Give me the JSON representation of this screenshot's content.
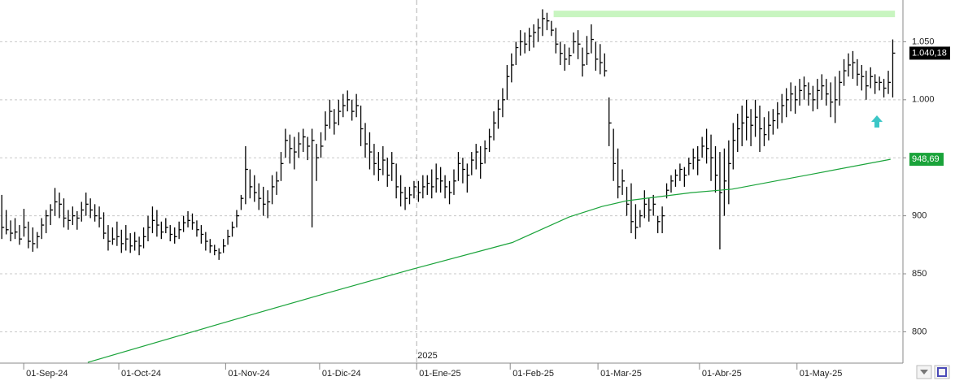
{
  "chart_data": {
    "type": "ohlc",
    "xlim": [
      -0.4,
      203.3
    ],
    "ylim": [
      773,
      1086
    ],
    "yticks": [
      {
        "value": 800,
        "label": "800"
      },
      {
        "value": 850,
        "label": "850"
      },
      {
        "value": 900,
        "label": "900"
      },
      {
        "value": 950,
        "label": "950"
      },
      {
        "value": 1000,
        "label": "1.000"
      },
      {
        "value": 1050,
        "label": "1.050"
      }
    ],
    "xticks": [
      {
        "value": 4.95,
        "label": "01-Sep-24"
      },
      {
        "value": 26.4,
        "label": "01-Oct-24"
      },
      {
        "value": 50.5,
        "label": "01-Nov-24"
      },
      {
        "value": 71.7,
        "label": "01-Dic-24"
      },
      {
        "value": 93.6,
        "label": "01-Ene-25"
      },
      {
        "value": 114.7,
        "label": "01-Feb-25"
      },
      {
        "value": 134.5,
        "label": "01-Mar-25"
      },
      {
        "value": 157.4,
        "label": "01-Abr-25"
      },
      {
        "value": 179.4,
        "label": "01-May-25"
      }
    ],
    "year_marker": {
      "value": 93.6,
      "label": "2025"
    },
    "grid": true,
    "color": "#000000",
    "high": [
      918,
      905,
      896,
      898,
      892,
      906,
      895,
      890,
      886,
      898,
      905,
      910,
      924,
      920,
      915,
      905,
      908,
      904,
      912,
      920,
      915,
      910,
      908,
      903,
      892,
      890,
      895,
      888,
      892,
      885,
      886,
      882,
      890,
      900,
      908,
      905,
      895,
      898,
      892,
      890,
      895,
      900,
      904,
      902,
      896,
      892,
      886,
      880,
      875,
      872,
      880,
      888,
      895,
      905,
      918,
      960,
      940,
      935,
      928,
      925,
      922,
      935,
      938,
      955,
      975,
      970,
      968,
      972,
      975,
      968,
      975,
      962,
      972,
      990,
      1000,
      992,
      1000,
      1005,
      1008,
      1000,
      1005,
      995,
      980,
      972,
      962,
      955,
      960,
      950,
      955,
      945,
      935,
      925,
      925,
      930,
      930,
      935,
      935,
      940,
      945,
      942,
      935,
      930,
      940,
      955,
      950,
      945,
      955,
      962,
      960,
      965,
      975,
      990,
      1000,
      1010,
      1030,
      1040,
      1050,
      1060,
      1058,
      1062,
      1065,
      1070,
      1078,
      1075,
      1068,
      1062,
      1050,
      1048,
      1045,
      1058,
      1060,
      1045,
      1055,
      1065,
      1050,
      1048,
      1040,
      1002,
      975,
      958,
      940,
      925,
      928,
      910,
      905,
      922,
      915,
      918,
      900,
      908,
      928,
      935,
      940,
      945,
      942,
      950,
      958,
      960,
      968,
      975,
      970,
      960,
      955,
      958,
      965,
      980,
      988,
      995,
      1000,
      992,
      1000,
      995,
      985,
      990,
      992,
      998,
      1005,
      1010,
      1015,
      1012,
      1018,
      1020,
      1015,
      1012,
      1018,
      1022,
      1018,
      1015,
      1020,
      1025,
      1035,
      1040,
      1042,
      1035,
      1030,
      1025,
      1028,
      1022,
      1020,
      1018,
      1025,
      1052
    ],
    "low": [
      880,
      884,
      878,
      880,
      875,
      882,
      872,
      869,
      872,
      880,
      885,
      892,
      900,
      898,
      890,
      888,
      892,
      888,
      895,
      900,
      898,
      895,
      890,
      880,
      870,
      875,
      874,
      868,
      870,
      868,
      870,
      866,
      872,
      878,
      885,
      882,
      880,
      885,
      878,
      876,
      880,
      886,
      890,
      888,
      882,
      876,
      870,
      868,
      866,
      862,
      868,
      875,
      882,
      890,
      905,
      910,
      915,
      912,
      905,
      900,
      898,
      910,
      918,
      930,
      950,
      945,
      940,
      950,
      955,
      948,
      890,
      930,
      950,
      965,
      975,
      970,
      978,
      985,
      990,
      982,
      985,
      960,
      950,
      940,
      935,
      930,
      935,
      925,
      930,
      915,
      908,
      905,
      910,
      915,
      912,
      915,
      918,
      915,
      920,
      920,
      915,
      910,
      918,
      930,
      928,
      920,
      935,
      940,
      932,
      945,
      955,
      965,
      975,
      985,
      1000,
      1015,
      1030,
      1038,
      1040,
      1042,
      1045,
      1050,
      1055,
      1060,
      1055,
      1040,
      1030,
      1025,
      1030,
      1040,
      1035,
      1020,
      1030,
      1040,
      1025,
      1022,
      1020,
      960,
      930,
      915,
      918,
      900,
      885,
      880,
      890,
      898,
      895,
      900,
      885,
      885,
      915,
      920,
      925,
      930,
      925,
      935,
      940,
      935,
      950,
      945,
      930,
      920,
      871,
      900,
      910,
      940,
      955,
      960,
      965,
      960,
      968,
      955,
      960,
      965,
      970,
      975,
      980,
      985,
      990,
      988,
      995,
      1000,
      995,
      990,
      992,
      1000,
      995,
      985,
      980,
      995,
      1012,
      1020,
      1018,
      1012,
      1008,
      1000,
      1010,
      1005,
      1008,
      1002,
      1005,
      1002
    ],
    "close": [
      890,
      888,
      885,
      886,
      880,
      890,
      878,
      876,
      882,
      892,
      900,
      905,
      912,
      910,
      898,
      896,
      900,
      898,
      905,
      910,
      905,
      900,
      898,
      885,
      878,
      880,
      882,
      876,
      880,
      874,
      878,
      874,
      882,
      890,
      896,
      892,
      886,
      890,
      884,
      882,
      888,
      894,
      896,
      894,
      888,
      884,
      878,
      874,
      870,
      868,
      874,
      882,
      890,
      900,
      915,
      940,
      925,
      920,
      915,
      910,
      912,
      925,
      930,
      945,
      965,
      958,
      955,
      962,
      968,
      960,
      965,
      950,
      960,
      978,
      990,
      980,
      990,
      995,
      1000,
      990,
      995,
      975,
      962,
      955,
      945,
      940,
      948,
      935,
      945,
      925,
      920,
      915,
      918,
      925,
      920,
      925,
      928,
      925,
      932,
      930,
      925,
      920,
      930,
      945,
      940,
      935,
      948,
      955,
      945,
      958,
      968,
      980,
      992,
      1000,
      1020,
      1030,
      1045,
      1050,
      1048,
      1055,
      1058,
      1062,
      1070,
      1068,
      1060,
      1048,
      1040,
      1035,
      1038,
      1050,
      1048,
      1030,
      1040,
      1052,
      1035,
      1032,
      1025,
      980,
      945,
      925,
      930,
      910,
      895,
      890,
      900,
      910,
      905,
      910,
      895,
      900,
      922,
      930,
      935,
      940,
      935,
      945,
      950,
      948,
      960,
      958,
      950,
      935,
      920,
      930,
      945,
      965,
      975,
      980,
      985,
      978,
      985,
      975,
      970,
      978,
      982,
      988,
      995,
      1000,
      1005,
      1000,
      1008,
      1012,
      1005,
      1000,
      1008,
      1012,
      1005,
      998,
      1000,
      1015,
      1025,
      1030,
      1032,
      1022,
      1020,
      1012,
      1020,
      1015,
      1015,
      1010,
      1015,
      1040.18
    ],
    "last_price": {
      "value": 1040.18,
      "label": "1.040,18"
    },
    "moving_average": {
      "color": "#1aa33a",
      "x": [
        19.4,
        54.7,
        73,
        93.6,
        115.2,
        128,
        135.4,
        141,
        155.6,
        164.8,
        183,
        200.5
      ],
      "values": [
        773.6,
        813,
        833,
        855,
        877,
        899,
        908,
        913,
        920,
        923,
        936,
        948.69
      ],
      "last_label": {
        "value": 948.69,
        "label": "948,69"
      }
    },
    "resistance": {
      "value": 1074,
      "x": [
        124.5,
        201.5
      ],
      "color": "#c8f5c0"
    }
  }
}
